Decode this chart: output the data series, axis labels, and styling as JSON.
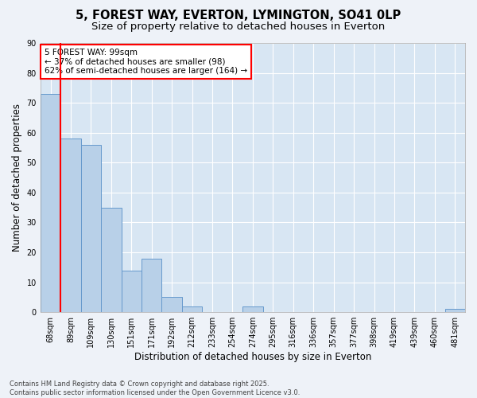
{
  "title1": "5, FOREST WAY, EVERTON, LYMINGTON, SO41 0LP",
  "title2": "Size of property relative to detached houses in Everton",
  "xlabel": "Distribution of detached houses by size in Everton",
  "ylabel": "Number of detached properties",
  "categories": [
    "68sqm",
    "89sqm",
    "109sqm",
    "130sqm",
    "151sqm",
    "171sqm",
    "192sqm",
    "212sqm",
    "233sqm",
    "254sqm",
    "274sqm",
    "295sqm",
    "316sqm",
    "336sqm",
    "357sqm",
    "377sqm",
    "398sqm",
    "419sqm",
    "439sqm",
    "460sqm",
    "481sqm"
  ],
  "values": [
    73,
    58,
    56,
    35,
    14,
    18,
    5,
    2,
    0,
    0,
    2,
    0,
    0,
    0,
    0,
    0,
    0,
    0,
    0,
    0,
    1
  ],
  "bar_color": "#b8d0e8",
  "bar_edge_color": "#6699cc",
  "annotation_title": "5 FOREST WAY: 99sqm",
  "annotation_line1": "← 37% of detached houses are smaller (98)",
  "annotation_line2": "62% of semi-detached houses are larger (164) →",
  "annotation_box_color": "white",
  "annotation_box_edge": "red",
  "vline_color": "red",
  "vline_x": 1.0,
  "ylim": [
    0,
    90
  ],
  "yticks": [
    0,
    10,
    20,
    30,
    40,
    50,
    60,
    70,
    80,
    90
  ],
  "footer_line1": "Contains HM Land Registry data © Crown copyright and database right 2025.",
  "footer_line2": "Contains public sector information licensed under the Open Government Licence v3.0.",
  "bg_color": "#eef2f8",
  "plot_bg_color": "#d8e6f3",
  "grid_color": "white",
  "title_fontsize": 10.5,
  "subtitle_fontsize": 9.5,
  "tick_fontsize": 7,
  "label_fontsize": 8.5,
  "annotation_fontsize": 7.5,
  "footer_fontsize": 6
}
